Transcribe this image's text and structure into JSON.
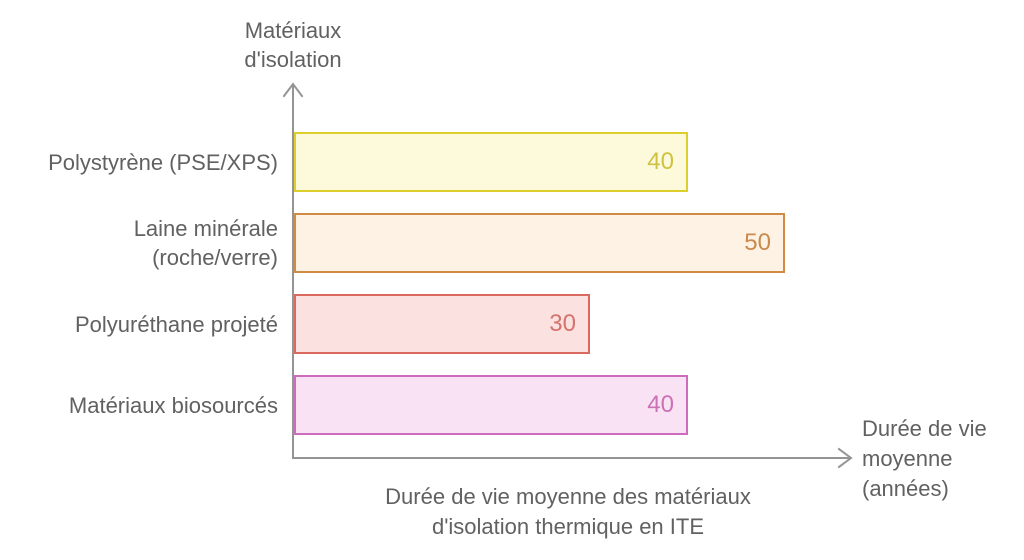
{
  "chart_data": {
    "type": "bar",
    "orientation": "horizontal",
    "title": "Durée de vie moyenne des matériaux d'isolation thermique en ITE",
    "title_lines": [
      "Durée de vie moyenne des matériaux",
      "d'isolation thermique en ITE"
    ],
    "xlabel": "Durée de vie moyenne (années)",
    "xlabel_lines": [
      "Durée de vie",
      "moyenne",
      "(années)"
    ],
    "ylabel": "Matériaux d'isolation",
    "ylabel_lines": [
      "Matériaux",
      "d'isolation"
    ],
    "xlim": [
      0,
      50
    ],
    "grid": false,
    "legend": false,
    "categories": [
      "Polystyrène (PSE/XPS)",
      "Laine minérale (roche/verre)",
      "Polyuréthane projeté",
      "Matériaux biosourcés"
    ],
    "values": [
      40,
      50,
      30,
      40
    ],
    "bars": [
      {
        "label_lines": [
          "Polystyrène (PSE/XPS)"
        ],
        "value": 40,
        "border_color": "#dccf2b",
        "fill_color": "#fcfadb",
        "value_color": "#cfc243"
      },
      {
        "label_lines": [
          "Laine minérale",
          "(roche/verre)"
        ],
        "value": 50,
        "border_color": "#d28b43",
        "fill_color": "#fdf2e3",
        "value_color": "#ca8a4e"
      },
      {
        "label_lines": [
          "Polyuréthane projeté"
        ],
        "value": 30,
        "border_color": "#da6960",
        "fill_color": "#fbe2e0",
        "value_color": "#d5736c"
      },
      {
        "label_lines": [
          "Matériaux biosourcés"
        ],
        "value": 40,
        "border_color": "#cd6cbc",
        "fill_color": "#f9e2f4",
        "value_color": "#c972b4"
      }
    ]
  },
  "colors": {
    "axis": "#949494",
    "text": "#616161"
  }
}
